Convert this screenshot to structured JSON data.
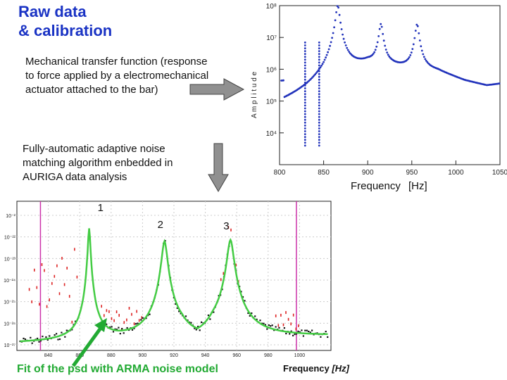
{
  "slide": {
    "title_line1": "Raw data",
    "title_line2": "& calibration",
    "description_line1": "Mechanical transfer function (response",
    "description_line2": "to force applied by a electromechanical",
    "description_line3": "actuator attached to the bar)",
    "algorithm_line1": "Fully-automatic adaptive noise",
    "algorithm_line2": "matching algorithm enbedded in",
    "algorithm_line3": "AURIGA data analysis",
    "fit_caption": "Fit of the psd with ARMA noise model",
    "colors": {
      "title": "#1a33c4",
      "fit_text": "#22aa33",
      "arrow": "#909090"
    }
  },
  "chart_data": [
    {
      "type": "scatter",
      "title": "",
      "xlabel": "Frequency",
      "xunit": "[Hz]",
      "ylabel_fragment": "A m p l i t u d e",
      "y_scale": "log",
      "xlim": [
        800,
        1050
      ],
      "ylim": [
        1000,
        100000000
      ],
      "x_ticks": [
        800,
        850,
        900,
        950,
        1000,
        1050
      ],
      "y_ticks": [
        {
          "value": 10000,
          "label": "10⁴"
        },
        {
          "value": 100000,
          "label": "10⁵"
        },
        {
          "value": 1000000,
          "label": "10⁶"
        },
        {
          "value": 10000000,
          "label": "10⁷"
        },
        {
          "value": 100000000,
          "label": "10⁸"
        }
      ],
      "grid": false,
      "series": [
        {
          "color": "#2233bb",
          "peaks": [
            {
              "x": 866,
              "y": 100000000
            },
            {
              "x": 915,
              "y": 25000000
            },
            {
              "x": 956,
              "y": 25000000
            }
          ],
          "spikes": [
            {
              "x": 829,
              "y": 8000000
            },
            {
              "x": 845,
              "y": 8000000
            }
          ],
          "baseline": [
            {
              "x": 805,
              "y": 12000
            },
            {
              "x": 830,
              "y": 30000
            },
            {
              "x": 850,
              "y": 120000
            },
            {
              "x": 860,
              "y": 800000
            },
            {
              "x": 880,
              "y": 1100000
            },
            {
              "x": 900,
              "y": 1600000
            },
            {
              "x": 935,
              "y": 1100000
            },
            {
              "x": 980,
              "y": 800000
            },
            {
              "x": 1010,
              "y": 400000
            },
            {
              "x": 1035,
              "y": 280000
            },
            {
              "x": 1050,
              "y": 330000
            }
          ]
        }
      ]
    },
    {
      "type": "scatter",
      "title": "",
      "xlabel": "Frequency",
      "xunit": "[Hz]",
      "y_scale": "log",
      "xlim": [
        820,
        1020
      ],
      "x_ticks": [
        {
          "value": 840,
          "label": "840"
        },
        {
          "value": 860,
          "label": "860"
        },
        {
          "value": 880,
          "label": "880"
        },
        {
          "value": 900,
          "label": "900"
        },
        {
          "value": 920,
          "label": "920"
        },
        {
          "value": 940,
          "label": "940"
        },
        {
          "value": 960,
          "label": "960"
        },
        {
          "value": 980,
          "label": "980"
        },
        {
          "value": 1000,
          "label": "1000"
        }
      ],
      "y_ticks": [
        "10⁻²",
        "10⁻²²",
        "10⁻²³",
        "10⁻²⁴",
        "10⁻²⁵",
        "10⁻²⁶",
        "10⁻²⁷"
      ],
      "peak_labels": [
        {
          "label": "1",
          "x": 866
        },
        {
          "label": "2",
          "x": 914
        },
        {
          "label": "3",
          "x": 956
        }
      ],
      "markers": [
        {
          "x": 835,
          "color": "#cc33aa"
        },
        {
          "x": 998,
          "color": "#cc33aa"
        }
      ],
      "series": [
        {
          "name": "",
          "color": "#111111",
          "kind": "measured"
        },
        {
          "name": "",
          "color": "#dd2222",
          "kind": "excluded"
        },
        {
          "name": "",
          "color": "#44cc44",
          "kind": "fit"
        }
      ]
    }
  ]
}
